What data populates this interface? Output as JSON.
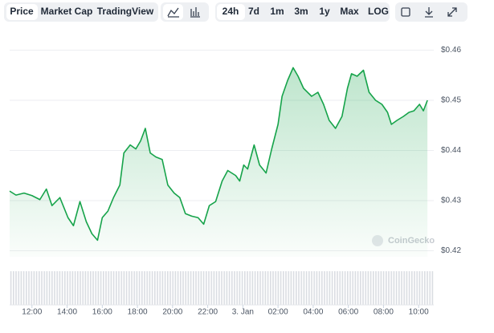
{
  "toolbar": {
    "views": [
      "Price",
      "Market Cap",
      "TradingView"
    ],
    "ranges": [
      "24h",
      "7d",
      "1m",
      "3m",
      "1y",
      "Max",
      "LOG"
    ]
  },
  "watermark": "CoinGecko",
  "chart_data": {
    "type": "area",
    "x": [
      10.73,
      11.09,
      11.55,
      12.0,
      12.45,
      12.82,
      13.14,
      13.59,
      14.05,
      14.36,
      14.73,
      15.09,
      15.41,
      15.73,
      16.0,
      16.32,
      16.64,
      17.0,
      17.23,
      17.59,
      17.91,
      18.18,
      18.45,
      18.73,
      19.05,
      19.41,
      19.73,
      20.09,
      20.41,
      20.73,
      21.09,
      21.45,
      21.77,
      22.09,
      22.45,
      22.82,
      23.14,
      23.59,
      23.82,
      24.05,
      24.27,
      24.64,
      24.95,
      25.32,
      25.64,
      26.0,
      26.23,
      26.55,
      26.86,
      27.14,
      27.45,
      27.91,
      28.27,
      28.59,
      28.91,
      29.27,
      29.64,
      29.95,
      30.18,
      30.5,
      30.86,
      31.18,
      31.55,
      31.91,
      32.23,
      32.45,
      32.77,
      33.14,
      33.45,
      33.73,
      34.05,
      34.27,
      34.5
    ],
    "values": [
      0.4319,
      0.4311,
      0.4315,
      0.431,
      0.4302,
      0.4323,
      0.429,
      0.4306,
      0.4266,
      0.425,
      0.4298,
      0.4258,
      0.4234,
      0.4221,
      0.4266,
      0.4279,
      0.4306,
      0.4331,
      0.4395,
      0.4411,
      0.4403,
      0.4419,
      0.4444,
      0.4395,
      0.4387,
      0.4382,
      0.4331,
      0.4315,
      0.4306,
      0.4274,
      0.4269,
      0.4266,
      0.4253,
      0.429,
      0.4298,
      0.4339,
      0.436,
      0.435,
      0.4339,
      0.4371,
      0.4363,
      0.4411,
      0.4371,
      0.4355,
      0.4403,
      0.4452,
      0.4508,
      0.454,
      0.4565,
      0.4548,
      0.4524,
      0.4508,
      0.4516,
      0.4492,
      0.446,
      0.4444,
      0.4468,
      0.4524,
      0.4553,
      0.4548,
      0.456,
      0.4516,
      0.45,
      0.4492,
      0.4476,
      0.4452,
      0.446,
      0.4468,
      0.4476,
      0.4479,
      0.4492,
      0.4479,
      0.45
    ],
    "color": "#16a34a",
    "xlim": [
      10.73,
      34.86
    ],
    "xticks": [
      {
        "value": 12,
        "label": "12:00"
      },
      {
        "value": 14,
        "label": "14:00"
      },
      {
        "value": 16,
        "label": "16:00"
      },
      {
        "value": 18,
        "label": "18:00"
      },
      {
        "value": 20,
        "label": "20:00"
      },
      {
        "value": 22,
        "label": "22:00"
      },
      {
        "value": 24,
        "label": "3. Jan"
      },
      {
        "value": 26,
        "label": "02:00"
      },
      {
        "value": 28,
        "label": "04:00"
      },
      {
        "value": 30,
        "label": "06:00"
      },
      {
        "value": 32,
        "label": "08:00"
      },
      {
        "value": 34,
        "label": "10:00"
      }
    ],
    "ylim": [
      0.418,
      0.462
    ],
    "yticks": [
      {
        "value": 0.42,
        "label": "$0.42"
      },
      {
        "value": 0.43,
        "label": "$0.43"
      },
      {
        "value": 0.44,
        "label": "$0.44"
      },
      {
        "value": 0.45,
        "label": "$0.45"
      },
      {
        "value": 0.46,
        "label": "$0.46"
      }
    ],
    "grid": true
  }
}
